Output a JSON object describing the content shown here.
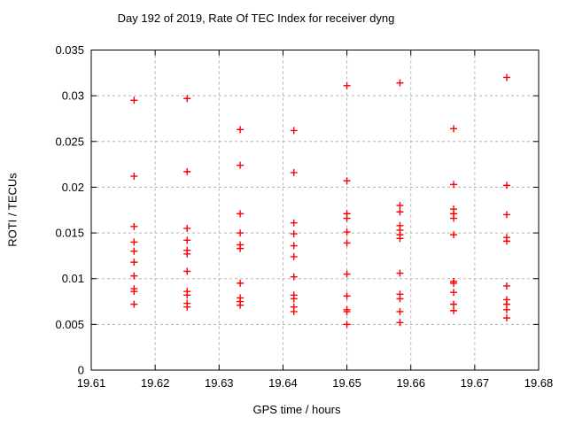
{
  "title": "Day 192 of 2019, Rate Of TEC Index for receiver dyng",
  "colors": {
    "marker": "#ff0000",
    "axis": "#000000",
    "grid": "#b4b4b4",
    "background": "#ffffff",
    "text": "#000000"
  },
  "chart_data": {
    "type": "scatter",
    "title": "Day 192 of 2019, Rate Of TEC Index for receiver dyng",
    "xlabel": "GPS time / hours",
    "ylabel": "ROTI / TECUs",
    "xlim": [
      19.61,
      19.68
    ],
    "ylim": [
      0,
      0.035
    ],
    "xticks": [
      19.61,
      19.62,
      19.63,
      19.64,
      19.65,
      19.66,
      19.67,
      19.68
    ],
    "xtick_labels": [
      "19.61",
      "19.62",
      "19.63",
      "19.64",
      "19.65",
      "19.66",
      "19.67",
      "19.68"
    ],
    "yticks": [
      0,
      0.005,
      0.01,
      0.015,
      0.02,
      0.025,
      0.03,
      0.035
    ],
    "ytick_labels": [
      "0",
      "0.005",
      "0.01",
      "0.015",
      "0.02",
      "0.025",
      "0.03",
      "0.035"
    ],
    "grid": true,
    "legend_position": "none",
    "marker": {
      "shape": "plus",
      "color": "#ff0000",
      "size": 8
    },
    "series": [
      {
        "name": "ROTI",
        "points": [
          [
            19.6167,
            0.0295
          ],
          [
            19.6167,
            0.0212
          ],
          [
            19.6167,
            0.0157
          ],
          [
            19.6167,
            0.014
          ],
          [
            19.6167,
            0.013
          ],
          [
            19.6167,
            0.0118
          ],
          [
            19.6167,
            0.0103
          ],
          [
            19.6167,
            0.0089
          ],
          [
            19.6167,
            0.0086
          ],
          [
            19.6167,
            0.0072
          ],
          [
            19.625,
            0.0297
          ],
          [
            19.625,
            0.0217
          ],
          [
            19.625,
            0.0155
          ],
          [
            19.625,
            0.0142
          ],
          [
            19.625,
            0.0131
          ],
          [
            19.625,
            0.0127
          ],
          [
            19.625,
            0.0108
          ],
          [
            19.625,
            0.0086
          ],
          [
            19.625,
            0.0082
          ],
          [
            19.625,
            0.0073
          ],
          [
            19.625,
            0.0069
          ],
          [
            19.6333,
            0.0263
          ],
          [
            19.6333,
            0.0224
          ],
          [
            19.6333,
            0.0171
          ],
          [
            19.6333,
            0.015
          ],
          [
            19.6333,
            0.0137
          ],
          [
            19.6333,
            0.0133
          ],
          [
            19.6333,
            0.0095
          ],
          [
            19.6333,
            0.0079
          ],
          [
            19.6333,
            0.0075
          ],
          [
            19.6333,
            0.0071
          ],
          [
            19.6417,
            0.0262
          ],
          [
            19.6417,
            0.0216
          ],
          [
            19.6417,
            0.0161
          ],
          [
            19.6417,
            0.0149
          ],
          [
            19.6417,
            0.0136
          ],
          [
            19.6417,
            0.0124
          ],
          [
            19.6417,
            0.0102
          ],
          [
            19.6417,
            0.0082
          ],
          [
            19.6417,
            0.0078
          ],
          [
            19.6417,
            0.0069
          ],
          [
            19.6417,
            0.0064
          ],
          [
            19.65,
            0.0311
          ],
          [
            19.65,
            0.0207
          ],
          [
            19.65,
            0.0171
          ],
          [
            19.65,
            0.0166
          ],
          [
            19.65,
            0.0151
          ],
          [
            19.65,
            0.0139
          ],
          [
            19.65,
            0.0105
          ],
          [
            19.65,
            0.0081
          ],
          [
            19.65,
            0.0066
          ],
          [
            19.65,
            0.0064
          ],
          [
            19.65,
            0.005
          ],
          [
            19.6583,
            0.0314
          ],
          [
            19.6583,
            0.018
          ],
          [
            19.6583,
            0.0173
          ],
          [
            19.6583,
            0.0158
          ],
          [
            19.6583,
            0.0153
          ],
          [
            19.6583,
            0.0148
          ],
          [
            19.6583,
            0.0144
          ],
          [
            19.6583,
            0.0106
          ],
          [
            19.6583,
            0.0083
          ],
          [
            19.6583,
            0.0078
          ],
          [
            19.6583,
            0.0064
          ],
          [
            19.6583,
            0.0052
          ],
          [
            19.6667,
            0.0264
          ],
          [
            19.6667,
            0.0203
          ],
          [
            19.6667,
            0.0176
          ],
          [
            19.6667,
            0.0171
          ],
          [
            19.6667,
            0.0166
          ],
          [
            19.6667,
            0.0148
          ],
          [
            19.6667,
            0.0097
          ],
          [
            19.6667,
            0.0095
          ],
          [
            19.6667,
            0.0085
          ],
          [
            19.6667,
            0.0072
          ],
          [
            19.6667,
            0.0065
          ],
          [
            19.675,
            0.032
          ],
          [
            19.675,
            0.0202
          ],
          [
            19.675,
            0.017
          ],
          [
            19.675,
            0.0145
          ],
          [
            19.675,
            0.0141
          ],
          [
            19.675,
            0.0092
          ],
          [
            19.675,
            0.0077
          ],
          [
            19.675,
            0.0072
          ],
          [
            19.675,
            0.0066
          ],
          [
            19.675,
            0.0057
          ]
        ]
      }
    ]
  }
}
